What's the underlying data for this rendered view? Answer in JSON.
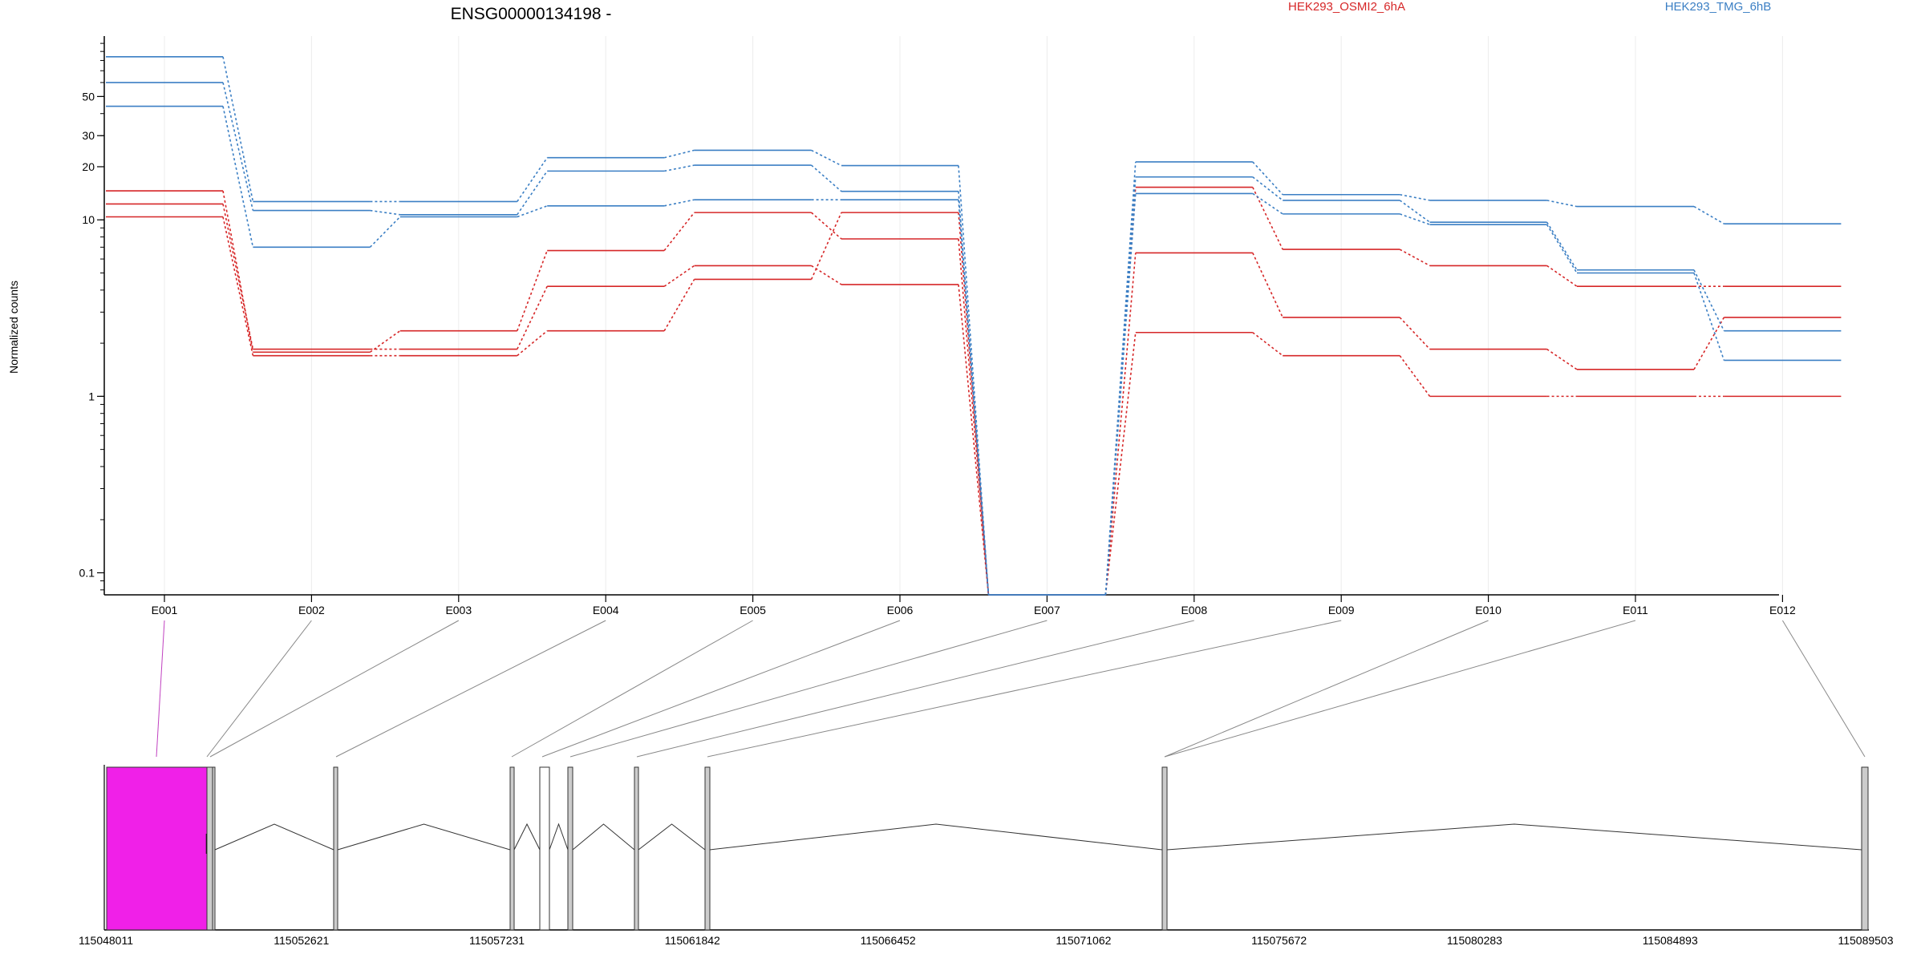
{
  "chart_data": {
    "type": "line",
    "title": "ENSG00000134198 -",
    "xlabel": "",
    "ylabel": "Normalized counts",
    "y_scale": "log",
    "y_ticks": [
      {
        "value": 0.1,
        "label": "0.1"
      },
      {
        "value": 1,
        "label": "1"
      },
      {
        "value": 10,
        "label": "10"
      },
      {
        "value": 20,
        "label": "20"
      },
      {
        "value": 30,
        "label": "30"
      },
      {
        "value": 50,
        "label": "50"
      }
    ],
    "categories": [
      "E001",
      "E002",
      "E003",
      "E004",
      "E005",
      "E006",
      "E007",
      "E008",
      "E009",
      "E010",
      "E011",
      "E012"
    ],
    "grid": true,
    "legend_placement": "top",
    "legend": [
      {
        "name": "HEK293_OSMI2_6hA",
        "color": "#d62728"
      },
      {
        "name": "HEK293_TMG_6hB",
        "color": "#3b7fc4"
      }
    ],
    "series": [
      {
        "group": "HEK293_OSMI2_6hA",
        "color": "#d62728",
        "values": [
          14.6,
          1.78,
          2.35,
          6.7,
          11.0,
          7.8,
          0.075,
          15.3,
          6.8,
          5.5,
          4.2,
          4.2
        ]
      },
      {
        "group": "HEK293_OSMI2_6hA",
        "color": "#d62728",
        "values": [
          12.3,
          1.85,
          1.85,
          4.2,
          5.5,
          4.3,
          0.075,
          6.5,
          2.8,
          1.85,
          1.42,
          2.8
        ]
      },
      {
        "group": "HEK293_OSMI2_6hA",
        "color": "#d62728",
        "values": [
          10.4,
          1.7,
          1.7,
          2.35,
          4.6,
          11.0,
          0.075,
          2.3,
          1.7,
          1.0,
          1.0,
          1.0
        ]
      },
      {
        "group": "HEK293_TMG_6hB",
        "color": "#3b7fc4",
        "values": [
          84.0,
          12.7,
          12.7,
          22.5,
          24.8,
          20.3,
          0.075,
          21.3,
          13.9,
          12.9,
          11.9,
          9.5
        ]
      },
      {
        "group": "HEK293_TMG_6hB",
        "color": "#3b7fc4",
        "values": [
          60.0,
          11.3,
          10.7,
          18.9,
          20.4,
          14.5,
          0.075,
          17.5,
          12.9,
          9.7,
          5.2,
          2.35
        ]
      },
      {
        "group": "HEK293_TMG_6hB",
        "color": "#3b7fc4",
        "values": [
          44.0,
          7.0,
          10.4,
          12.0,
          13.0,
          13.0,
          0.075,
          14.1,
          10.8,
          9.4,
          5.0,
          1.6
        ]
      }
    ],
    "gene_model": {
      "coord_ticks": [
        "115048011",
        "115052621",
        "115057231",
        "115061842",
        "115066452",
        "115071062",
        "115075672",
        "115080283",
        "115084893",
        "115089503"
      ],
      "highlighted_exon": "E001",
      "highlight_color": "#f020e8",
      "exon_fill": "#cccccc"
    }
  }
}
